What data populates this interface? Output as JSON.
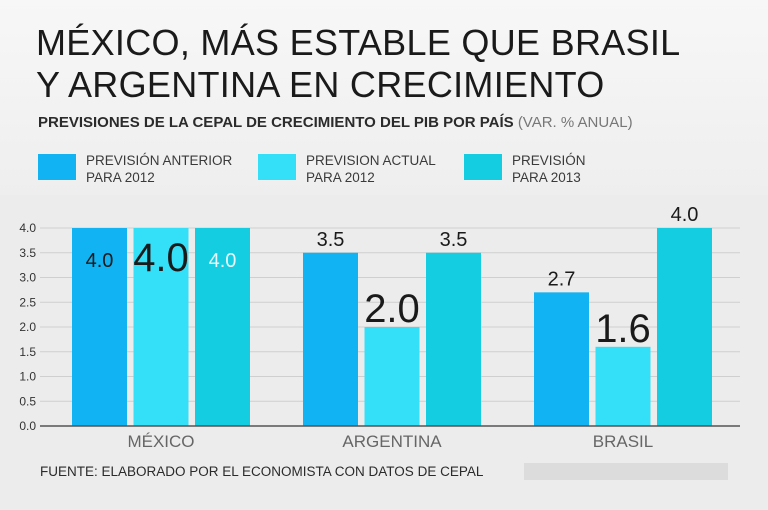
{
  "header": {
    "title_line1": "MÉXICO, MÁS ESTABLE QUE BRASIL",
    "title_line2": "Y ARGENTINA EN CRECIMIENTO",
    "subtitle": "PREVISIONES DE LA CEPAL DE CRECIMIENTO DEL PIB POR PAÍS",
    "subtitle_unit": "(VAR. % ANUAL)"
  },
  "legend": [
    {
      "line1": "PREVISIÓN ANTERIOR",
      "line2": "PARA 2012",
      "color": "#12b3f2"
    },
    {
      "line1": "PREVISION ACTUAL",
      "line2": "PARA 2012",
      "color": "#34e0f8"
    },
    {
      "line1": "PREVISIÓN",
      "line2": "PARA 2013",
      "color": "#14cde0"
    }
  ],
  "chart_data": {
    "type": "bar",
    "title": "PREVISIONES DE LA CEPAL DE CRECIMIENTO DEL PIB POR PAÍS",
    "xlabel": "",
    "ylabel": "VAR. % ANUAL",
    "categories": [
      "MÉXICO",
      "ARGENTINA",
      "BRASIL"
    ],
    "series": [
      {
        "name": "PREVISIÓN ANTERIOR PARA 2012",
        "values": [
          4.0,
          3.5,
          2.7
        ],
        "labels": [
          "4.0",
          "3.5",
          "2.7"
        ],
        "color": "#12b3f2"
      },
      {
        "name": "PREVISION ACTUAL PARA 2012",
        "values": [
          4.0,
          2.0,
          1.6
        ],
        "labels": [
          "4.0",
          "2.0",
          "1.6"
        ],
        "color": "#34e0f8"
      },
      {
        "name": "PREVISIÓN PARA 2013",
        "values": [
          4.0,
          3.5,
          4.0
        ],
        "labels": [
          "4.0",
          "3.5",
          "4.0"
        ],
        "color": "#14cde0"
      }
    ],
    "ylim": [
      0,
      4
    ],
    "yticks": [
      "0.0",
      "0.5",
      "1.0",
      "1.5",
      "2.0",
      "2.5",
      "3.0",
      "3.5",
      "4.0"
    ],
    "grid": true
  },
  "footer": {
    "source": "FUENTE: ELABORADO POR EL ECONOMISTA CON DATOS DE CEPAL"
  }
}
